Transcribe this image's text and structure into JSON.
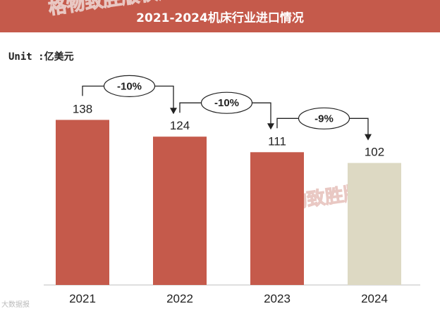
{
  "title": "2021-2024机床行业进口情况",
  "unit_label": "Unit :",
  "unit_value": "亿美元",
  "watermarks": [
    "格物致胜版权所有",
    "格物致胜版权所"
  ],
  "source_logo_text": "大数据报",
  "colors": {
    "bar": "#c55a4b",
    "bar_last": "#ddd9c3",
    "title_bg": "#c55a4b"
  },
  "chart_data": {
    "type": "bar",
    "categories": [
      "2021",
      "2022",
      "2023",
      "2024"
    ],
    "values": [
      138,
      124,
      111,
      102
    ],
    "changes": [
      "-10%",
      "-10%",
      "-9%"
    ],
    "title": "2021-2024机床行业进口情况",
    "ylabel": "",
    "xlabel": "",
    "ylim": [
      0,
      200
    ],
    "grid": false
  }
}
